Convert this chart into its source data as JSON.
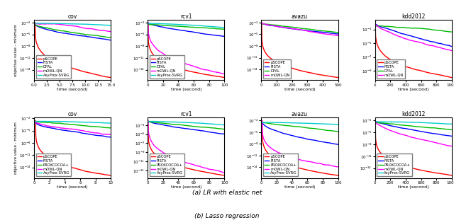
{
  "fig_width": 6.4,
  "fig_height": 3.11,
  "dpi": 100,
  "subtitle_a": "(a) LR with elastic net",
  "subtitle_b": "(b) Lasso regression",
  "row1_titles": [
    "cov",
    "rcv1",
    "avazu",
    "kdd2012"
  ],
  "row2_titles": [
    "cov",
    "rcv1",
    "avazu",
    "kdd2012"
  ],
  "row1_xlims": [
    15,
    100,
    500,
    1000
  ],
  "row2_xlims": [
    10,
    100,
    100,
    1000
  ],
  "colors_map": {
    "pSCOPE": "#ff0000",
    "FISTA": "#0000ff",
    "DFAL": "#00bb00",
    "mOWL-QN": "#ff00ff",
    "AsyProx-SVRG": "#00cccc",
    "PROXCOCOA+": "#00bb00"
  },
  "line_width": 1.0,
  "title_font_size": 5.5,
  "label_font_size": 4.5,
  "legend_font_size": 3.8
}
